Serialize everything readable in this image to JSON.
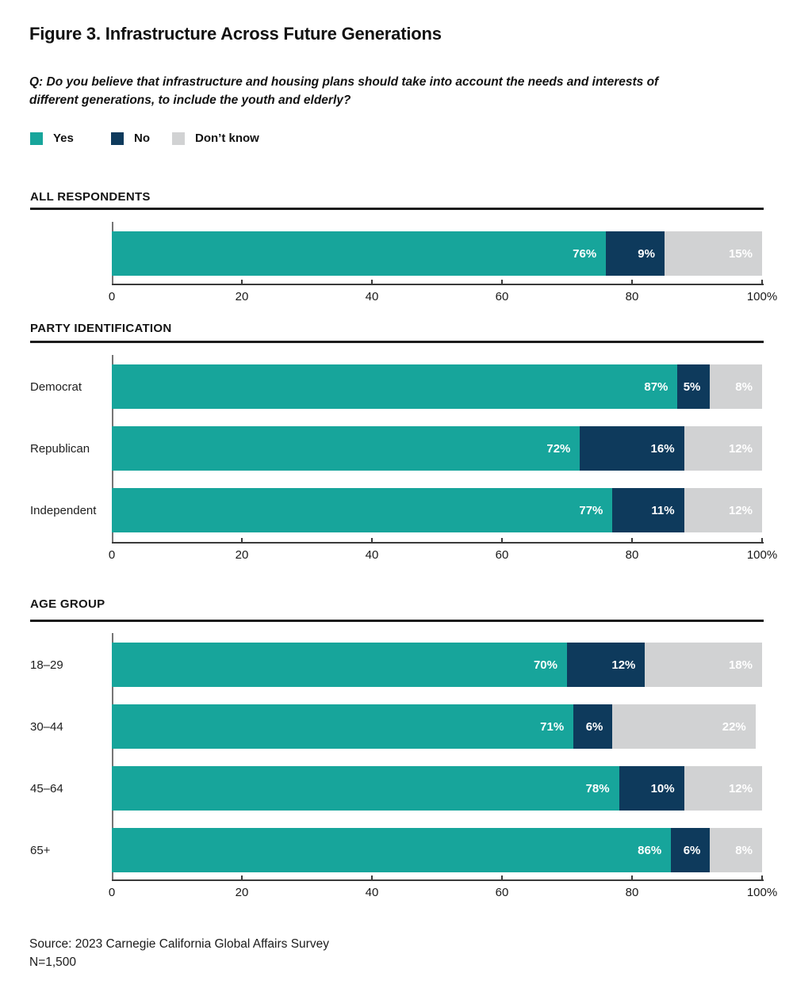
{
  "title": "Figure 3. Infrastructure Across Future Generations",
  "question": "Q: Do you believe that infrastructure and housing plans should take into account the needs and interests of different generations, to include the youth and elderly?",
  "legend": [
    {
      "label": "Yes",
      "color": "#17A59B"
    },
    {
      "label": "No",
      "color": "#0E3A5C"
    },
    {
      "label": "Don’t know",
      "color": "#D1D2D3"
    }
  ],
  "colors": {
    "yes": "#17A59B",
    "no": "#0E3A5C",
    "dont_know": "#D1D2D3",
    "axis": "#3a3a3a",
    "y_axis": "#757575",
    "rule": "#1c1c1c",
    "text": "#161616",
    "bar_label": "#ffffff"
  },
  "source": {
    "line1": "Source: 2023 Carnegie California Global Affairs Survey",
    "line2": "N=1,500"
  },
  "chart_data": [
    {
      "type": "bar",
      "orientation": "horizontal",
      "stacked": true,
      "title": "ALL RESPONDENTS",
      "categories": [
        ""
      ],
      "series": [
        {
          "name": "Yes",
          "values": [
            76
          ]
        },
        {
          "name": "No",
          "values": [
            9
          ]
        },
        {
          "name": "Don’t know",
          "values": [
            15
          ]
        }
      ],
      "xlim": [
        0,
        100
      ],
      "xticks": [
        0,
        20,
        40,
        60,
        80,
        100
      ],
      "xtick_labels": [
        "0",
        "20",
        "40",
        "60",
        "80",
        "100%"
      ],
      "value_suffix": "%",
      "grid": false,
      "legend_position": "top-left"
    },
    {
      "type": "bar",
      "orientation": "horizontal",
      "stacked": true,
      "title": "PARTY IDENTIFICATION",
      "categories": [
        "Democrat",
        "Republican",
        "Independent"
      ],
      "series": [
        {
          "name": "Yes",
          "values": [
            87,
            72,
            77
          ]
        },
        {
          "name": "No",
          "values": [
            5,
            16,
            11
          ]
        },
        {
          "name": "Don’t know",
          "values": [
            8,
            12,
            12
          ]
        }
      ],
      "xlim": [
        0,
        100
      ],
      "xticks": [
        0,
        20,
        40,
        60,
        80,
        100
      ],
      "xtick_labels": [
        "0",
        "20",
        "40",
        "60",
        "80",
        "100%"
      ],
      "value_suffix": "%",
      "grid": false,
      "legend_position": "top-left"
    },
    {
      "type": "bar",
      "orientation": "horizontal",
      "stacked": true,
      "title": "AGE GROUP",
      "categories": [
        "18–29",
        "30–44",
        "45–64",
        "65+"
      ],
      "series": [
        {
          "name": "Yes",
          "values": [
            70,
            71,
            78,
            86
          ]
        },
        {
          "name": "No",
          "values": [
            12,
            6,
            10,
            6
          ]
        },
        {
          "name": "Don’t know",
          "values": [
            18,
            22,
            12,
            8
          ]
        }
      ],
      "xlim": [
        0,
        100
      ],
      "xticks": [
        0,
        20,
        40,
        60,
        80,
        100
      ],
      "xtick_labels": [
        "0",
        "20",
        "40",
        "60",
        "80",
        "100%"
      ],
      "value_suffix": "%",
      "grid": false,
      "legend_position": "top-left"
    }
  ]
}
